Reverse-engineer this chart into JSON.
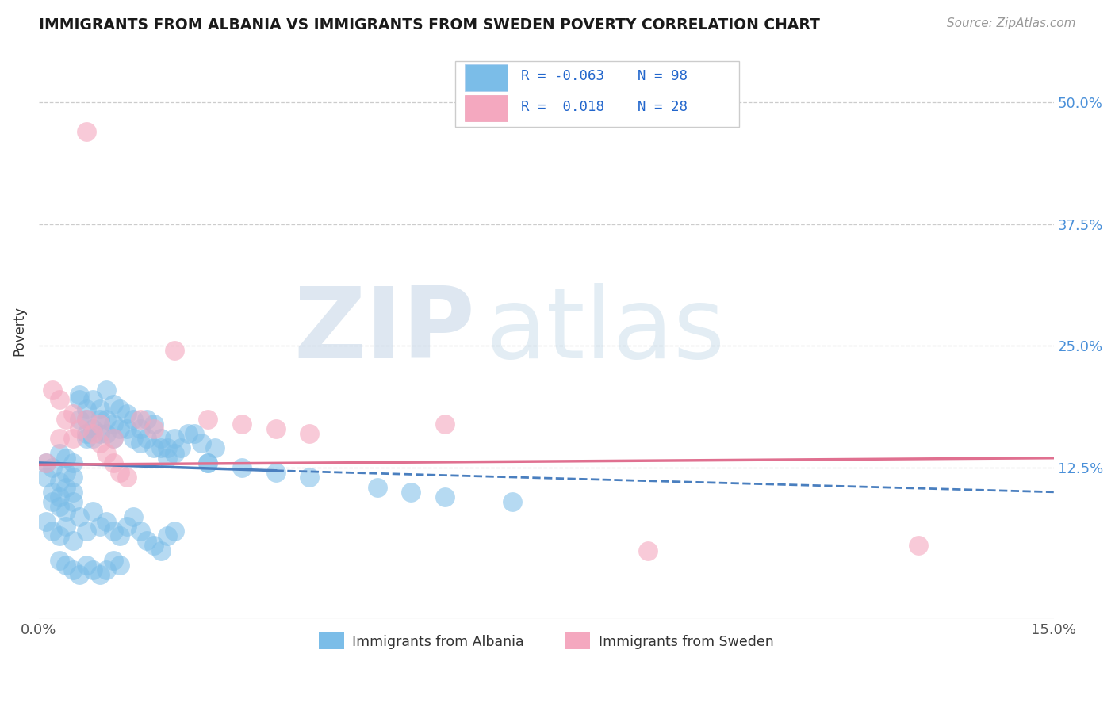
{
  "title": "IMMIGRANTS FROM ALBANIA VS IMMIGRANTS FROM SWEDEN POVERTY CORRELATION CHART",
  "source": "Source: ZipAtlas.com",
  "ylabel": "Poverty",
  "xlim": [
    0.0,
    0.15
  ],
  "ylim": [
    -0.03,
    0.56
  ],
  "yticks": [
    0.125,
    0.25,
    0.375,
    0.5
  ],
  "ytick_labels": [
    "12.5%",
    "25.0%",
    "37.5%",
    "50.0%"
  ],
  "xtick_labels": [
    "0.0%",
    "15.0%"
  ],
  "color_albania": "#7bbde8",
  "color_sweden": "#f4a8bf",
  "trend_color_albania": "#4a7fbf",
  "trend_color_sweden": "#e07090",
  "watermark_zip": "ZIP",
  "watermark_atlas": "atlas",
  "albania_x": [
    0.001,
    0.001,
    0.002,
    0.002,
    0.002,
    0.003,
    0.003,
    0.003,
    0.003,
    0.004,
    0.004,
    0.004,
    0.004,
    0.005,
    0.005,
    0.005,
    0.005,
    0.006,
    0.006,
    0.006,
    0.007,
    0.007,
    0.007,
    0.007,
    0.008,
    0.008,
    0.008,
    0.009,
    0.009,
    0.009,
    0.01,
    0.01,
    0.01,
    0.011,
    0.011,
    0.011,
    0.012,
    0.012,
    0.013,
    0.013,
    0.014,
    0.014,
    0.015,
    0.015,
    0.016,
    0.016,
    0.017,
    0.017,
    0.018,
    0.018,
    0.019,
    0.019,
    0.02,
    0.02,
    0.021,
    0.022,
    0.023,
    0.024,
    0.025,
    0.026,
    0.001,
    0.002,
    0.003,
    0.004,
    0.005,
    0.006,
    0.007,
    0.008,
    0.009,
    0.01,
    0.011,
    0.012,
    0.013,
    0.014,
    0.015,
    0.016,
    0.017,
    0.018,
    0.019,
    0.02,
    0.003,
    0.004,
    0.005,
    0.006,
    0.007,
    0.008,
    0.009,
    0.01,
    0.011,
    0.012,
    0.025,
    0.03,
    0.035,
    0.04,
    0.05,
    0.055,
    0.06,
    0.07
  ],
  "albania_y": [
    0.13,
    0.115,
    0.1,
    0.09,
    0.125,
    0.085,
    0.11,
    0.095,
    0.14,
    0.105,
    0.12,
    0.135,
    0.08,
    0.115,
    0.1,
    0.09,
    0.13,
    0.195,
    0.2,
    0.175,
    0.16,
    0.175,
    0.185,
    0.155,
    0.195,
    0.165,
    0.155,
    0.185,
    0.175,
    0.16,
    0.205,
    0.175,
    0.16,
    0.19,
    0.17,
    0.155,
    0.185,
    0.165,
    0.18,
    0.165,
    0.175,
    0.155,
    0.165,
    0.15,
    0.175,
    0.155,
    0.145,
    0.17,
    0.145,
    0.155,
    0.135,
    0.145,
    0.14,
    0.155,
    0.145,
    0.16,
    0.16,
    0.15,
    0.13,
    0.145,
    0.07,
    0.06,
    0.055,
    0.065,
    0.05,
    0.075,
    0.06,
    0.08,
    0.065,
    0.07,
    0.06,
    0.055,
    0.065,
    0.075,
    0.06,
    0.05,
    0.045,
    0.04,
    0.055,
    0.06,
    0.03,
    0.025,
    0.02,
    0.015,
    0.025,
    0.02,
    0.015,
    0.02,
    0.03,
    0.025,
    0.13,
    0.125,
    0.12,
    0.115,
    0.105,
    0.1,
    0.095,
    0.09
  ],
  "sweden_x": [
    0.001,
    0.002,
    0.003,
    0.004,
    0.005,
    0.006,
    0.007,
    0.008,
    0.009,
    0.01,
    0.011,
    0.012,
    0.013,
    0.015,
    0.017,
    0.02,
    0.025,
    0.03,
    0.035,
    0.04,
    0.003,
    0.005,
    0.007,
    0.009,
    0.011,
    0.06,
    0.09,
    0.13
  ],
  "sweden_y": [
    0.13,
    0.205,
    0.195,
    0.175,
    0.155,
    0.165,
    0.175,
    0.16,
    0.15,
    0.14,
    0.13,
    0.12,
    0.115,
    0.175,
    0.165,
    0.245,
    0.175,
    0.17,
    0.165,
    0.16,
    0.155,
    0.18,
    0.47,
    0.17,
    0.155,
    0.17,
    0.04,
    0.045
  ],
  "trendline_x_start": 0.0,
  "trendline_x_solid_end": 0.035,
  "trendline_x_end": 0.15,
  "trendline_alb_y_start": 0.13,
  "trendline_alb_y_solid_end": 0.122,
  "trendline_alb_y_end": 0.1,
  "trendline_swe_y_start": 0.128,
  "trendline_swe_y_end": 0.135
}
